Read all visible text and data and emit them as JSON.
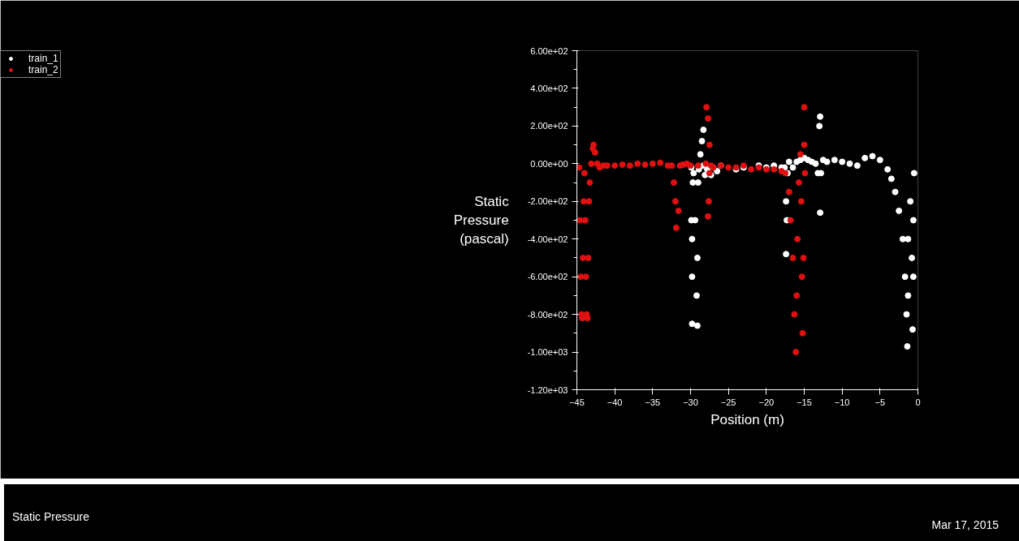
{
  "chart_data": {
    "type": "scatter",
    "xlabel": "Position (m)",
    "ylabel": "Static Pressure (pascal)",
    "xlim": [
      -45,
      0
    ],
    "xticks": [
      -45,
      -40,
      -35,
      -30,
      -25,
      -20,
      -15,
      -10,
      -5,
      0
    ],
    "ylim": [
      -1200,
      600
    ],
    "yticks": [
      {
        "value": 600,
        "label": "6.00e+02"
      },
      {
        "value": 400,
        "label": "4.00e+02"
      },
      {
        "value": 200,
        "label": "2.00e+02"
      },
      {
        "value": 0,
        "label": "0.00e+00"
      },
      {
        "value": -200,
        "label": "-2.00e+02"
      },
      {
        "value": -400,
        "label": "-4.00e+02"
      },
      {
        "value": -600,
        "label": "-6.00e+02"
      },
      {
        "value": -800,
        "label": "-8.00e+02"
      },
      {
        "value": -1000,
        "label": "-1.00e+03"
      },
      {
        "value": -1200,
        "label": "-1.20e+03"
      }
    ],
    "marker": "circle",
    "grid": false,
    "legend": "top left",
    "annotations": [
      "Static Pressure",
      "Mar 17, 2015"
    ],
    "series": [
      {
        "name": "train_1",
        "color": "#ffffff",
        "x": [
          -29.9,
          -29.9,
          -29.8,
          -29.8,
          -29.8,
          -29.7,
          -29.6,
          -29.4,
          -29.2,
          -29.1,
          -29.1,
          -29.0,
          -28.9,
          -28.7,
          -28.5,
          -28.3,
          -28.3,
          -28.1,
          -27.8,
          -27.3,
          -27.0,
          -26.5,
          -26.0,
          -25.0,
          -24.0,
          -23.0,
          -22.0,
          -21.0,
          -20.0,
          -19.0,
          -18.0,
          -17.6,
          -17.4,
          -17.4,
          -17.3,
          -17.2,
          -17.0,
          -16.5,
          -16.0,
          -15.5,
          -15.0,
          -14.5,
          -14.0,
          -13.5,
          -13.2,
          -13.0,
          -12.9,
          -12.9,
          -12.8,
          -12.5,
          -12.0,
          -11.0,
          -10.0,
          -9.0,
          -8.0,
          -7.0,
          -6.0,
          -5.0,
          -4.0,
          -3.5,
          -3.0,
          -2.5,
          -2.0,
          -1.7,
          -1.5,
          -1.4,
          -1.3,
          -1.3,
          -1.0,
          -0.8,
          -0.7,
          -0.6,
          -0.6,
          -0.5
        ],
        "values": [
          -20,
          -300,
          -600,
          -850,
          -400,
          -100,
          -50,
          -300,
          -700,
          -860,
          -500,
          -100,
          -30,
          50,
          120,
          180,
          -10,
          -60,
          -30,
          -60,
          -20,
          -40,
          -10,
          null,
          -30,
          -20,
          null,
          -10,
          -20,
          -10,
          -20,
          -20,
          -200,
          -480,
          -300,
          -50,
          10,
          -20,
          10,
          20,
          30,
          20,
          10,
          0,
          -50,
          200,
          250,
          -260,
          -50,
          20,
          10,
          20,
          10,
          0,
          -10,
          30,
          40,
          20,
          -30,
          -80,
          -150,
          -250,
          -400,
          -600,
          -800,
          -970,
          -700,
          -400,
          -200,
          -500,
          -880,
          -600,
          -300,
          -50
        ]
      },
      {
        "name": "train_2",
        "color": "#e01010",
        "x": [
          -44.7,
          -44.6,
          -44.5,
          -44.4,
          -44.3,
          -44.2,
          -44.1,
          -44.0,
          -43.9,
          -43.8,
          -43.7,
          -43.6,
          -43.5,
          -43.4,
          -43.3,
          -43.1,
          -42.9,
          -42.8,
          -42.6,
          -42.3,
          -42.0,
          -41.5,
          -41.0,
          -40.0,
          -39.0,
          -38.0,
          -37.0,
          -36.0,
          -35.0,
          -34.0,
          -33.0,
          -32.5,
          -32.2,
          -32.0,
          -31.9,
          -31.6,
          -31.4,
          -31.0,
          -30.5,
          -30.0,
          -29.0,
          -28.0,
          -27.9,
          -27.7,
          -27.7,
          -27.6,
          -27.5,
          -27.5,
          -27.3,
          -27.0,
          -26.0,
          -25.0,
          -24.0,
          -23.0,
          -22.0,
          -21.0,
          -20.0,
          -19.0,
          -18.0,
          -17.5,
          -17.0,
          -16.8,
          -16.5,
          -16.3,
          -16.1,
          -16.0,
          -15.9,
          -15.7,
          -15.5,
          -15.4,
          -15.3,
          -15.2,
          -15.1,
          -15.0,
          -15.0,
          -14.9
        ],
        "values": [
          -20,
          -300,
          -600,
          -800,
          -820,
          -500,
          -200,
          -50,
          -300,
          -600,
          -800,
          -820,
          -500,
          -200,
          -100,
          0,
          80,
          100,
          60,
          0,
          -20,
          -10,
          -10,
          -10,
          -5,
          -10,
          0,
          -5,
          0,
          5,
          -10,
          -10,
          -100,
          -200,
          -340,
          -250,
          -10,
          -5,
          0,
          -10,
          -10,
          0,
          300,
          240,
          -280,
          -200,
          -50,
          100,
          -10,
          -20,
          -10,
          -20,
          -20,
          -10,
          -30,
          -20,
          -30,
          -30,
          -40,
          -50,
          -150,
          -300,
          -500,
          -800,
          -1000,
          -700,
          -400,
          -100,
          50,
          -200,
          -600,
          -900,
          -500,
          100,
          300,
          -50
        ]
      }
    ]
  }
}
